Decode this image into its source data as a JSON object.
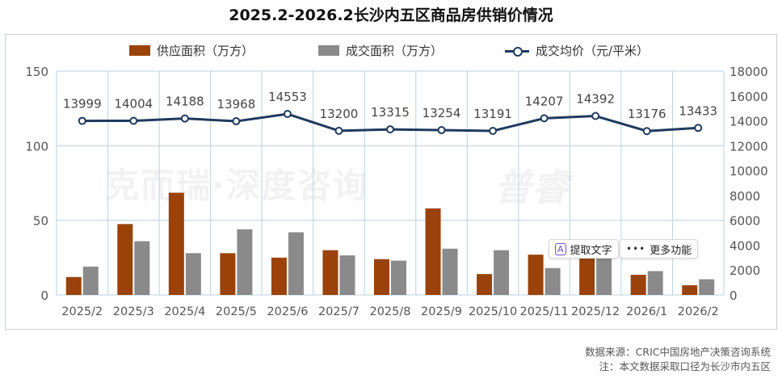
{
  "title": "2025.2-2026.2长沙内五区商品房供销价情况",
  "watermark": {
    "left": "克而瑞·深度咨询",
    "right": "普睿"
  },
  "popup": {
    "extract_text_label": "提取文字",
    "more_label": "更多功能"
  },
  "source": {
    "line1": "数据来源：CRIC中国房地产决策咨询系统",
    "line2": "注：本文数据采取口径为长沙市内五区"
  },
  "colors": {
    "supply": "#9a4209",
    "deal": "#8a8a8a",
    "price": "#1f3a5f",
    "grid": "#b8d3e0"
  },
  "chart_data": {
    "type": "bar",
    "title": "2025.2-2026.2长沙内五区商品房供销价情况",
    "categories": [
      "2025/2",
      "2025/3",
      "2025/4",
      "2025/5",
      "2025/6",
      "2025/7",
      "2025/8",
      "2025/9",
      "2025/10",
      "2025/11",
      "2025/12",
      "2026/1",
      "2026/2"
    ],
    "series": [
      {
        "name": "供应面积（万方）",
        "type": "bar",
        "axis": "left",
        "values": [
          12,
          47.5,
          68.5,
          28,
          25,
          30,
          24,
          58,
          14,
          27,
          26,
          13.5,
          6.5
        ]
      },
      {
        "name": "成交面积（万方）",
        "type": "bar",
        "axis": "left",
        "values": [
          19,
          36,
          28,
          44,
          42,
          26.5,
          23,
          31,
          30,
          18,
          26,
          16,
          10.5
        ]
      },
      {
        "name": "成交均价（元/平米）",
        "type": "line",
        "axis": "right",
        "values": [
          13999,
          14004,
          14188,
          13968,
          14553,
          13200,
          13315,
          13254,
          13191,
          14207,
          14392,
          13176,
          13433
        ]
      }
    ],
    "y_left": {
      "min": 0,
      "max": 150,
      "ticks": [
        0,
        50,
        100,
        150
      ]
    },
    "y_right": {
      "min": 0,
      "max": 18000,
      "ticks": [
        0,
        2000,
        4000,
        6000,
        8000,
        10000,
        12000,
        14000,
        16000,
        18000
      ]
    },
    "grid": true,
    "legend_position": "top"
  }
}
